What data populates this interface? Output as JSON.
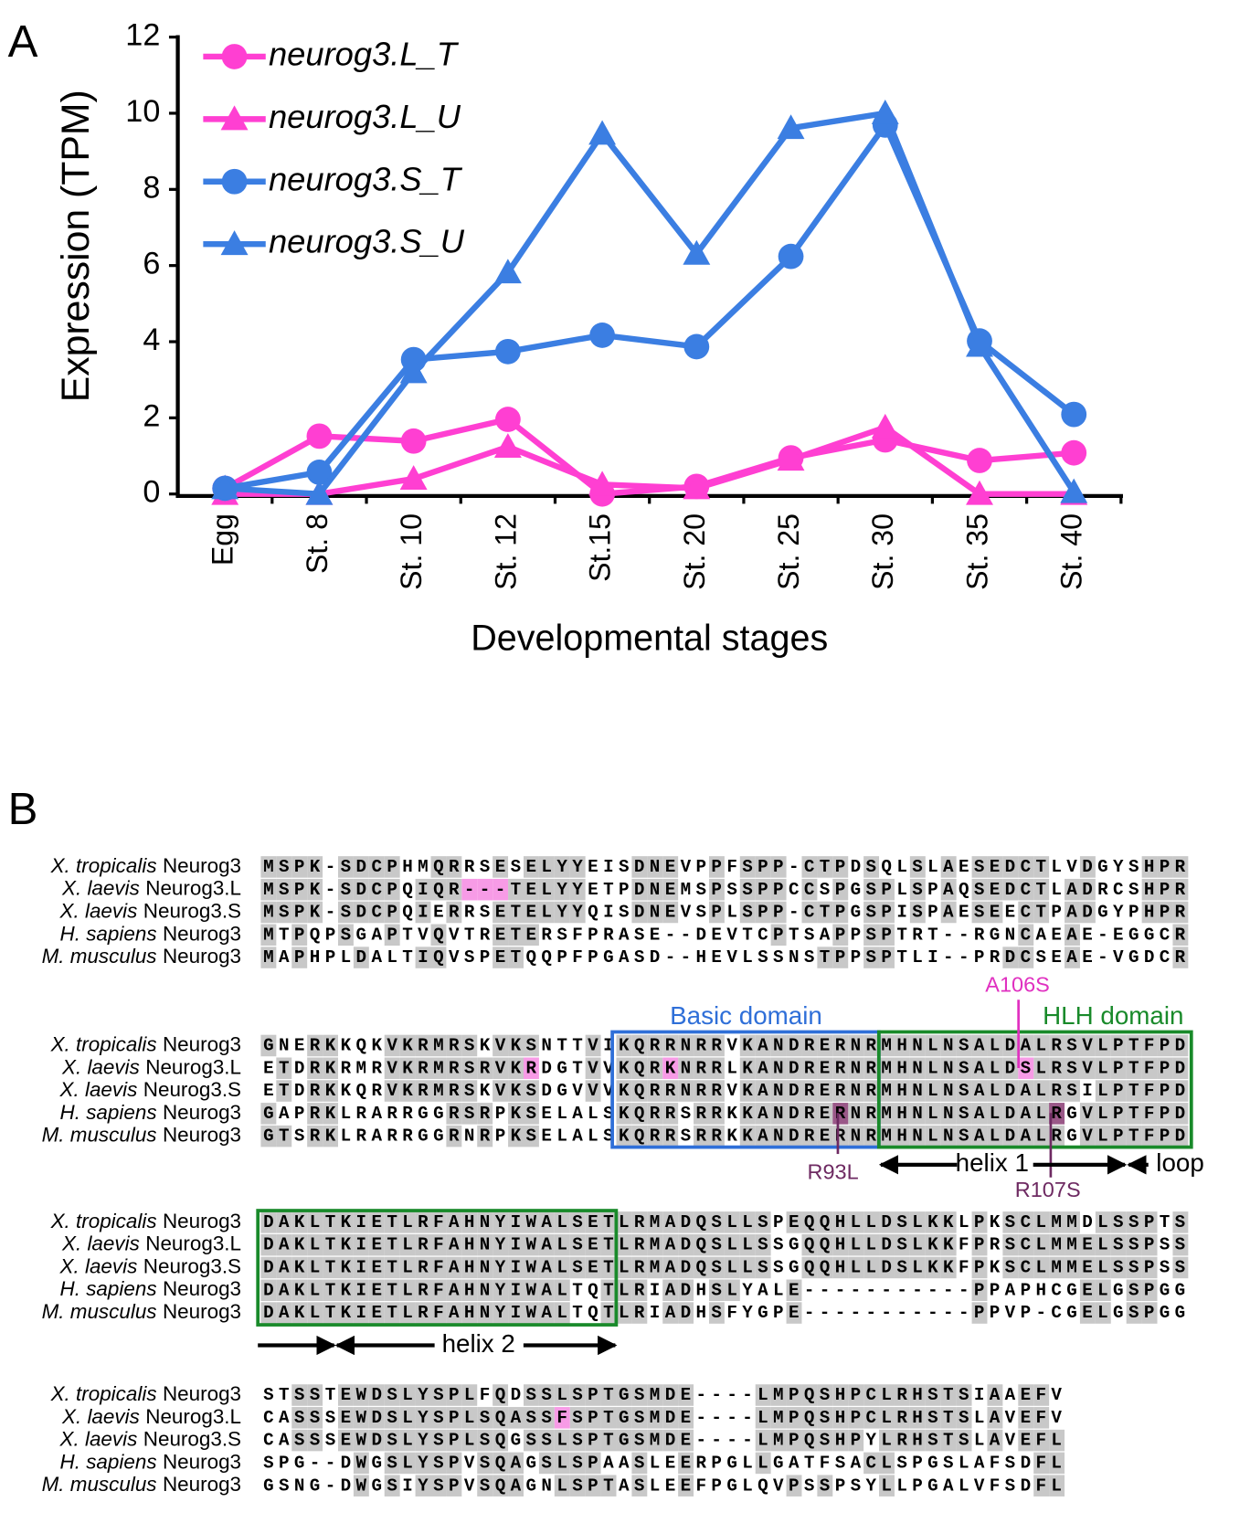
{
  "panel_labels": [
    "A",
    "B"
  ],
  "chart_data": {
    "type": "line",
    "ylabel": "Expression (TPM)",
    "xlabel": "Developmental stages",
    "categories": [
      "Egg",
      "St. 8",
      "St. 10",
      "St. 12",
      "St.15",
      "St. 20",
      "St. 25",
      "St. 30",
      "St. 35",
      "St. 40"
    ],
    "ylim": [
      0,
      12
    ],
    "yticks": [
      0,
      2,
      4,
      6,
      8,
      10,
      12
    ],
    "series": [
      {
        "name": "neurog3.L_T",
        "color": "#ff3fd2",
        "marker": "circle",
        "values": [
          0.15,
          1.52,
          1.39,
          1.96,
          0,
          0.2,
          0.95,
          1.42,
          0.88,
          1.08
        ]
      },
      {
        "name": "neurog3.L_U",
        "color": "#ff3fd2",
        "marker": "triangle",
        "values": [
          0,
          0,
          0.4,
          1.24,
          0.25,
          0.15,
          0.9,
          1.75,
          0,
          0
        ]
      },
      {
        "name": "neurog3.S_T",
        "color": "#3b7ee2",
        "marker": "circle",
        "values": [
          0.15,
          0.57,
          3.53,
          3.74,
          4.17,
          3.87,
          6.24,
          9.69,
          4.02,
          2.09
        ]
      },
      {
        "name": "neurog3.S_U",
        "color": "#3b7ee2",
        "marker": "triangle",
        "values": [
          0.15,
          0,
          3.2,
          5.82,
          9.46,
          6.31,
          9.61,
          10.0,
          3.89,
          0.05
        ]
      }
    ]
  },
  "alignment": {
    "species": [
      {
        "italic": "X. tropicalis",
        "name": "Neurog3"
      },
      {
        "italic": "X. laevis",
        "name": "Neurog3.L"
      },
      {
        "italic": "X. laevis",
        "name": "Neurog3.S"
      },
      {
        "italic": "H. sapiens",
        "name": "Neurog3"
      },
      {
        "italic": "M. musculus",
        "name": "Neurog3"
      }
    ],
    "blocks": [
      [
        "MSPK-SDCPHMQRRSESELYYEISDNEVPPFSPP-CTPDSQLSLAESEDCTLVDGYSHPR",
        "MSPK-SDCPQIQR---TELYYETPDNEMSPSSPPCCSPGSPLSPAQSEDCTLADRCSHPR",
        "MSPK-SDCPQIERRSETELYYQISDNEVSPLSPP-CTPGSPISPAESEECTPADGYPHPR",
        "MTPQPSGAPTVQVTRETERSFPRASE--DEVTCPTSAPPSPTRT--RGNCAEAE-EGGCR",
        "MAPHPLDALTIQVSPETQQPFPGASD--HEVLSSNSTPPSPTLI--PRDCSEAE-VGDCR"
      ],
      [
        "GNERKKQKVKRMRSKVKSNTTVIKQRRNRRVKANDRERNRMHNLNSALDALRSVLPTFPD",
        "ETDRKRMRVKRMRSRVKRDGTVVKQRKNRRLKANDRERNRMHNLNSALDSLRSVLPTFPD",
        "ETDRKKQRVKRMRSKVKSDGVVVKQRRNRRVKANDRERNRMHNLNSALDALRSILPTFPD",
        "GAPRKLRARRGGRSRPKSELALSKQRRSRRKKANDRERNRMHNLNSALDALRGVLPTFPD",
        "GTSRKLRARRGGRNRPKSELALSKQRRSRRKKANDRERNRMHNLNSALDALRGVLPTFPD"
      ],
      [
        "DAKLTKIETLRFAHNYIWALSETLRMADQSLLSPEQQHLLDSLKKLPKSCLMMDLSSPTS",
        "DAKLTKIETLRFAHNYIWALSETLRMADQSLLSSGQQHLLDSLKKFPRSCLMMELSSPSS",
        "DAKLTKIETLRFAHNYIWALSETLRMADQSLLSSGQQHLLDSLKKFPKSCLMMELSSPSS",
        "DAKLTKIETLRFAHNYIWALTQTLRIADHSLYALE-----------PPAPHCGELGSPGG",
        "DAKLTKIETLRFAHNYIWALTQTLRIADHSFYGPE-----------PPVP-CGELGSPGG"
      ],
      [
        "STSSTEWDSLYSPLFQDSSLSPTGSMDE----LMPQSHPCLRHSTSIAAEFV",
        "CASSSEWDSLYSPLSQASSFSPTGSMDE----LMPQSHPCLRHSTSLAVEFV",
        "CASSSEWDSLYSPLSQGSSLSPTGSMDE----LMPQSHPYLRHSTSLAVEFL",
        "SPG--DWGSLYSPVSQAGSLSPAASLEERPGLLGATFSACLSPGSLAFSDFL",
        "GSNG-DWGSIYSPVSQAGNLSPTASLEEFPGLQVPSSPSYLLPGALVFSDFL"
      ]
    ],
    "annotations": {
      "basic_domain": "Basic domain",
      "hlh_domain": "HLH domain",
      "a106s": "A106S",
      "r93l": "R93L",
      "r107s": "R107S",
      "helix1": "helix 1",
      "loop": "loop",
      "helix2": "helix 2"
    }
  }
}
